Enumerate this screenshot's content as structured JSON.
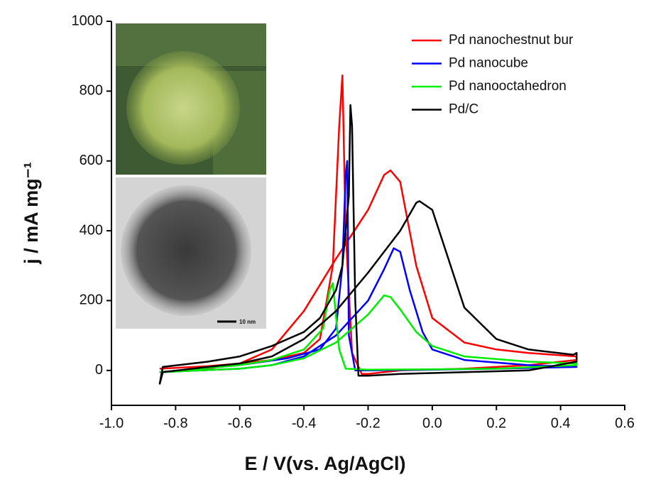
{
  "chart_data": {
    "type": "line",
    "x_label": "E / V(vs. Ag/AgCl)",
    "y_label": "j / mA mg⁻¹",
    "inset_scale_label": "10 nm",
    "xlim": [
      -1.0,
      0.6
    ],
    "xticks": [
      {
        "value": -1.0,
        "label": "-1.0"
      },
      -0.8,
      -0.6,
      -0.4,
      -0.2,
      {
        "value": 0.0,
        "label": "0.0"
      },
      0.2,
      0.4,
      0.6
    ],
    "ylim": [
      -100,
      1000
    ],
    "yticks": [
      0,
      200,
      400,
      600,
      800,
      1000
    ],
    "legend": "upper right",
    "series": [
      {
        "name": "Pd nanochestnut bur",
        "color": "#ff0000",
        "x": [
          -0.85,
          -0.7,
          -0.6,
          -0.5,
          -0.4,
          -0.3,
          -0.2,
          -0.15,
          -0.13,
          -0.1,
          -0.05,
          0.0,
          0.1,
          0.2,
          0.3,
          0.45,
          0.45,
          0.3,
          0.1,
          -0.1,
          -0.2,
          -0.22,
          -0.25,
          -0.27,
          -0.28,
          -0.29,
          -0.31,
          -0.35,
          -0.4,
          -0.5,
          -0.6,
          -0.7,
          -0.85
        ],
        "values": [
          -5,
          5,
          20,
          60,
          170,
          320,
          460,
          560,
          573,
          540,
          300,
          150,
          80,
          60,
          50,
          40,
          30,
          15,
          5,
          0,
          -10,
          -10,
          50,
          400,
          845,
          700,
          300,
          90,
          50,
          30,
          20,
          12,
          5
        ]
      },
      {
        "name": "Pd nanocube",
        "color": "#0000ff",
        "x": [
          -0.85,
          -0.6,
          -0.5,
          -0.4,
          -0.3,
          -0.2,
          -0.15,
          -0.12,
          -0.1,
          -0.07,
          -0.03,
          0.0,
          0.1,
          0.3,
          0.45,
          0.45,
          0.2,
          0.0,
          -0.2,
          -0.24,
          -0.26,
          -0.265,
          -0.27,
          -0.28,
          -0.3,
          -0.35,
          -0.45,
          -0.6,
          -0.85
        ],
        "values": [
          -5,
          5,
          15,
          40,
          100,
          200,
          290,
          350,
          340,
          230,
          110,
          60,
          30,
          15,
          10,
          10,
          5,
          2,
          0,
          0,
          100,
          600,
          560,
          300,
          120,
          60,
          35,
          15,
          -5
        ]
      },
      {
        "name": "Pd nanooctahedron",
        "color": "#00ee00",
        "x": [
          -0.85,
          -0.6,
          -0.5,
          -0.4,
          -0.3,
          -0.2,
          -0.15,
          -0.13,
          -0.1,
          -0.05,
          0.0,
          0.1,
          0.3,
          0.45,
          0.45,
          0.2,
          0.0,
          -0.2,
          -0.27,
          -0.29,
          -0.31,
          -0.32,
          -0.34,
          -0.4,
          -0.5,
          -0.6,
          -0.85
        ],
        "values": [
          -5,
          5,
          15,
          35,
          80,
          160,
          215,
          210,
          175,
          110,
          70,
          40,
          25,
          20,
          15,
          5,
          3,
          2,
          5,
          60,
          250,
          230,
          120,
          60,
          30,
          15,
          -5
        ]
      },
      {
        "name": "Pd/C",
        "color": "#000000",
        "x": [
          -0.85,
          -0.84,
          -0.7,
          -0.6,
          -0.5,
          -0.4,
          -0.3,
          -0.2,
          -0.1,
          -0.05,
          -0.04,
          0.0,
          0.05,
          0.1,
          0.2,
          0.3,
          0.44,
          0.45,
          0.45,
          0.3,
          0.1,
          -0.1,
          -0.2,
          -0.23,
          -0.24,
          -0.25,
          -0.255,
          -0.26,
          -0.28,
          -0.3,
          -0.35,
          -0.4,
          -0.5,
          -0.6,
          -0.7,
          -0.84,
          -0.85
        ],
        "values": [
          -40,
          -5,
          10,
          20,
          40,
          90,
          170,
          280,
          400,
          480,
          485,
          460,
          320,
          180,
          90,
          60,
          45,
          50,
          25,
          0,
          -5,
          -10,
          -15,
          -15,
          200,
          700,
          760,
          500,
          300,
          230,
          150,
          110,
          70,
          40,
          25,
          10,
          -40
        ]
      }
    ]
  }
}
